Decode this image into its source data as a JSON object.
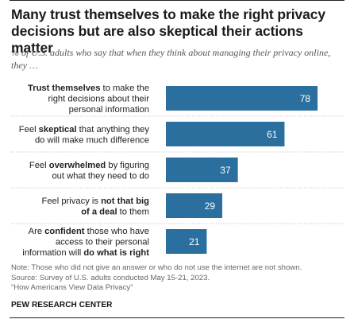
{
  "header": {
    "title": "Many trust themselves to make the right privacy decisions but are also skeptical their actions matter",
    "subtitle": "% of U.S. adults who say that when they think about managing their privacy online, they …"
  },
  "chart_data": {
    "type": "bar",
    "orientation": "horizontal",
    "categories": [
      "Trust themselves to make the right decisions about their personal information",
      "Feel skeptical that anything they do will make much difference",
      "Feel overwhelmed by figuring out what they need to do",
      "Feel privacy is not that big of a deal to them",
      "Are confident those who have access to their personal information will do what is right"
    ],
    "category_lines": [
      [
        [
          [
            "Trust themselves",
            true
          ],
          [
            " to make the",
            false
          ]
        ],
        [
          [
            "right decisions about their",
            false
          ]
        ],
        [
          [
            "personal information",
            false
          ]
        ]
      ],
      [
        [
          [
            "Feel ",
            false
          ],
          [
            "skeptical",
            true
          ],
          [
            " that anything they",
            false
          ]
        ],
        [
          [
            "do will make much difference",
            false
          ]
        ]
      ],
      [
        [
          [
            "Feel ",
            false
          ],
          [
            "overwhelmed",
            true
          ],
          [
            " by figuring",
            false
          ]
        ],
        [
          [
            "out what they need to do",
            false
          ]
        ]
      ],
      [
        [
          [
            "Feel privacy is ",
            false
          ],
          [
            "not that big",
            true
          ]
        ],
        [
          [
            "of a deal",
            true
          ],
          [
            " to them",
            false
          ]
        ]
      ],
      [
        [
          [
            "Are ",
            false
          ],
          [
            "confident",
            true
          ],
          [
            " those who have",
            false
          ]
        ],
        [
          [
            "access to their personal",
            false
          ]
        ],
        [
          [
            "information will ",
            false
          ],
          [
            "do what is right",
            true
          ]
        ]
      ]
    ],
    "values": [
      78,
      61,
      37,
      29,
      21
    ],
    "xlim": [
      0,
      100
    ],
    "grid": false,
    "bar_color": "#2a6f9e",
    "label_color": "#ffffff"
  },
  "footer": {
    "note_lines": [
      "Note: Those who did not give an answer or who do not use the internet are not shown.",
      "Source: Survey of U.S. adults conducted May 15-21, 2023.",
      "“How Americans View Data Privacy”"
    ],
    "org": "PEW RESEARCH CENTER"
  }
}
